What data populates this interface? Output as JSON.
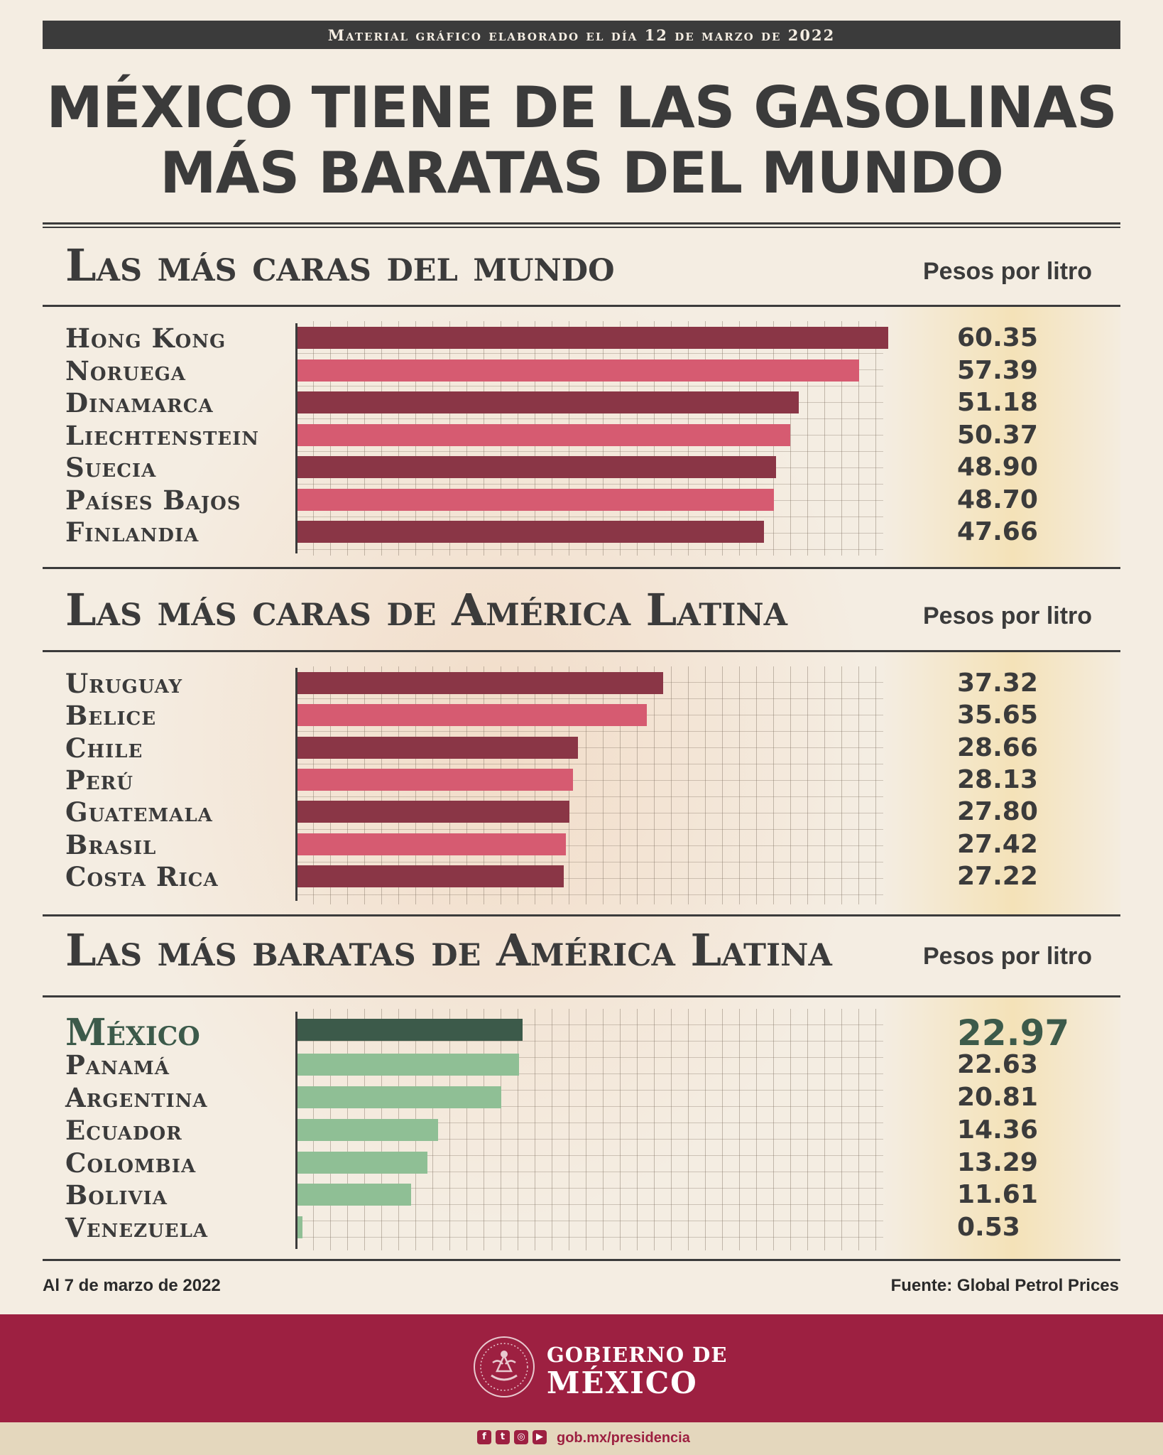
{
  "banner": "Material gráfico elaborado el día 12 de marzo de 2022",
  "title": {
    "line1": "MÉXICO TIENE  DE LAS GASOLINAS",
    "line2": "MÁS BARATAS DEL MUNDO"
  },
  "chart_data": [
    {
      "type": "bar",
      "orientation": "horizontal",
      "title": "Las más caras del mundo",
      "unit_label": "Pesos por litro",
      "xlim": [
        0,
        66
      ],
      "categories": [
        "Hong Kong",
        "Noruega",
        "Dinamarca",
        "Liechtenstein",
        "Suecia",
        "Países Bajos",
        "Finlandia"
      ],
      "values": [
        60.35,
        57.39,
        51.18,
        50.37,
        48.9,
        48.7,
        47.66
      ],
      "value_labels": [
        "60.35",
        "57.39",
        "51.18",
        "50.37",
        "48.90",
        "48.70",
        "47.66"
      ],
      "colors": [
        "#8a3646",
        "#d65b71",
        "#8a3646",
        "#d65b71",
        "#8a3646",
        "#d65b71",
        "#8a3646"
      ]
    },
    {
      "type": "bar",
      "orientation": "horizontal",
      "title": "Las más caras de América Latina",
      "unit_label": "Pesos por litro",
      "xlim": [
        0,
        66
      ],
      "categories": [
        "Uruguay",
        "Belice",
        "Chile",
        "Perú",
        "Guatemala",
        "Brasil",
        "Costa Rica"
      ],
      "values": [
        37.32,
        35.65,
        28.66,
        28.13,
        27.8,
        27.42,
        27.22
      ],
      "value_labels": [
        "37.32",
        "35.65",
        "28.66",
        "28.13",
        "27.80",
        "27.42",
        "27.22"
      ],
      "colors": [
        "#8a3646",
        "#d65b71",
        "#8a3646",
        "#d65b71",
        "#8a3646",
        "#d65b71",
        "#8a3646"
      ]
    },
    {
      "type": "bar",
      "orientation": "horizontal",
      "title": "Las más baratas de América Latina",
      "unit_label": "Pesos por litro",
      "xlim": [
        0,
        66
      ],
      "categories": [
        "México",
        "Panamá",
        "Argentina",
        "Ecuador",
        "Colombia",
        "Bolivia",
        "Venezuela"
      ],
      "values": [
        22.97,
        22.63,
        20.81,
        14.36,
        13.29,
        11.61,
        0.53
      ],
      "value_labels": [
        "22.97",
        "22.63",
        "20.81",
        "14.36",
        "13.29",
        "11.61",
        "0.53"
      ],
      "colors": [
        "#3c5a4a",
        "#8fbf95",
        "#8fbf95",
        "#8fbf95",
        "#8fbf95",
        "#8fbf95",
        "#8fbf95"
      ],
      "highlight": "México"
    }
  ],
  "footer": {
    "date_note": "Al 7 de marzo de 2022",
    "source": "Fuente: Global Petrol Prices"
  },
  "gov": {
    "line1": "GOBIERNO DE",
    "line2": "MÉXICO",
    "emblem_icon": "coat-of-arms-icon",
    "social_icons": [
      "facebook-icon",
      "twitter-icon",
      "instagram-icon",
      "youtube-icon"
    ],
    "url": "gob.mx/presidencia"
  }
}
